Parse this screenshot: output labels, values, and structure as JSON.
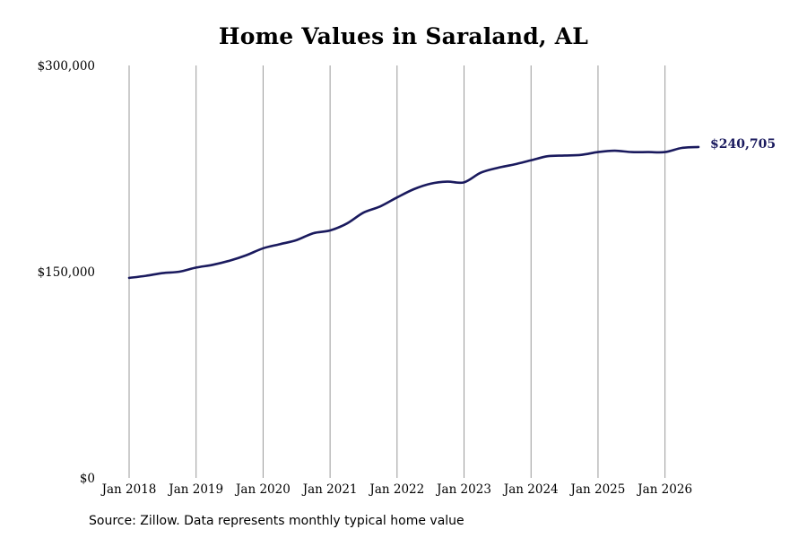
{
  "chart_data": {
    "type": "line",
    "title": "Home Values in Saraland, AL",
    "source_note": "Source: Zillow. Data represents monthly typical home value",
    "xlabel": "",
    "ylabel": "",
    "ylim": [
      0,
      300000
    ],
    "yticks": [
      0,
      150000,
      300000
    ],
    "ytick_labels": [
      "$0",
      "$150,000",
      "$300,000"
    ],
    "xlim": [
      "2018-01",
      "2026-07"
    ],
    "xticks": [
      "2018-01",
      "2019-01",
      "2020-01",
      "2021-01",
      "2022-01",
      "2023-01",
      "2024-01",
      "2025-01",
      "2026-01"
    ],
    "xtick_labels": [
      "Jan 2018",
      "Jan 2019",
      "Jan 2020",
      "Jan 2021",
      "Jan 2022",
      "Jan 2023",
      "Jan 2024",
      "Jan 2025",
      "Jan 2026"
    ],
    "grid": "vertical",
    "line_color": "#1a1a5e",
    "grid_color": "#999999",
    "end_label": "$240,705",
    "series": [
      {
        "x": [
          "2018-01",
          "2018-04",
          "2018-07",
          "2018-10",
          "2019-01",
          "2019-04",
          "2019-07",
          "2019-10",
          "2020-01",
          "2020-04",
          "2020-07",
          "2020-10",
          "2021-01",
          "2021-04",
          "2021-07",
          "2021-10",
          "2022-01",
          "2022-04",
          "2022-07",
          "2022-10",
          "2023-01",
          "2023-04",
          "2023-07",
          "2023-10",
          "2024-01",
          "2024-04",
          "2024-07",
          "2024-10",
          "2025-01",
          "2025-04",
          "2025-07",
          "2025-10",
          "2026-01",
          "2026-04",
          "2026-07"
        ],
        "values": [
          145500,
          147000,
          149000,
          150000,
          153000,
          155000,
          158000,
          162000,
          167000,
          170000,
          173000,
          178000,
          180000,
          185000,
          193000,
          197500,
          204000,
          210000,
          214000,
          215500,
          215000,
          222000,
          225500,
          228000,
          231000,
          234000,
          234500,
          235000,
          237000,
          238000,
          237000,
          237000,
          237000,
          240000,
          240705
        ]
      }
    ]
  }
}
